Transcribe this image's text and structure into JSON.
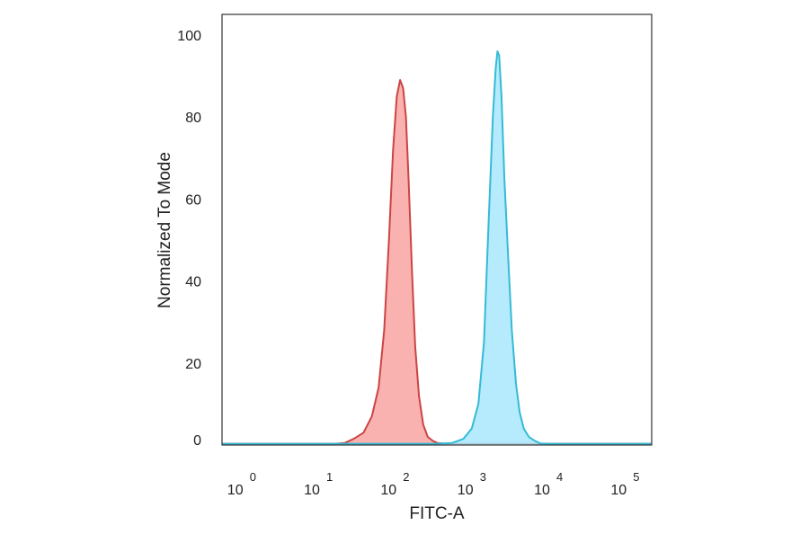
{
  "chart_data": {
    "type": "area",
    "title": "",
    "xlabel": "FITC-A",
    "ylabel": "Normalized To Mode",
    "x_scale": "log",
    "xlim": [
      0.5,
      200000
    ],
    "ylim": [
      0,
      105
    ],
    "grid": false,
    "legend": "none",
    "x_ticks": [
      {
        "base": "10",
        "exp": "0",
        "value": 1
      },
      {
        "base": "10",
        "exp": "1",
        "value": 10
      },
      {
        "base": "10",
        "exp": "2",
        "value": 100
      },
      {
        "base": "10",
        "exp": "3",
        "value": 1000
      },
      {
        "base": "10",
        "exp": "4",
        "value": 10000
      },
      {
        "base": "10",
        "exp": "5",
        "value": 100000
      }
    ],
    "y_ticks": [
      "0",
      "20",
      "40",
      "60",
      "80",
      "100"
    ],
    "series": [
      {
        "color_fill": "#f8a5a2",
        "color_line": "#cc4444",
        "x": [
          0.5,
          15,
          20,
          26,
          35,
          45,
          55,
          65,
          75,
          85,
          95,
          105,
          115,
          125,
          135,
          150,
          165,
          185,
          210,
          240,
          280,
          320,
          400,
          1000,
          10000,
          200000
        ],
        "y": [
          0.3,
          0.3,
          0.5,
          1.5,
          3,
          7,
          14,
          28,
          50,
          72,
          85,
          89,
          87,
          80,
          65,
          42,
          24,
          12,
          5,
          2,
          1,
          0.5,
          0.3,
          0.3,
          0.3,
          0.3
        ]
      },
      {
        "color_fill": "#a8e8fb",
        "color_line": "#35bad6",
        "x": [
          0.5,
          300,
          500,
          700,
          900,
          1100,
          1300,
          1500,
          1700,
          1850,
          1950,
          2050,
          2200,
          2400,
          2700,
          3000,
          3400,
          3800,
          4300,
          5000,
          6000,
          7000,
          10000,
          200000
        ],
        "y": [
          0.3,
          0.3,
          0.5,
          1.5,
          4,
          10,
          25,
          55,
          80,
          92,
          96,
          95,
          85,
          65,
          45,
          28,
          15,
          8,
          4,
          2,
          1,
          0.4,
          0.3,
          0.3
        ]
      }
    ]
  }
}
